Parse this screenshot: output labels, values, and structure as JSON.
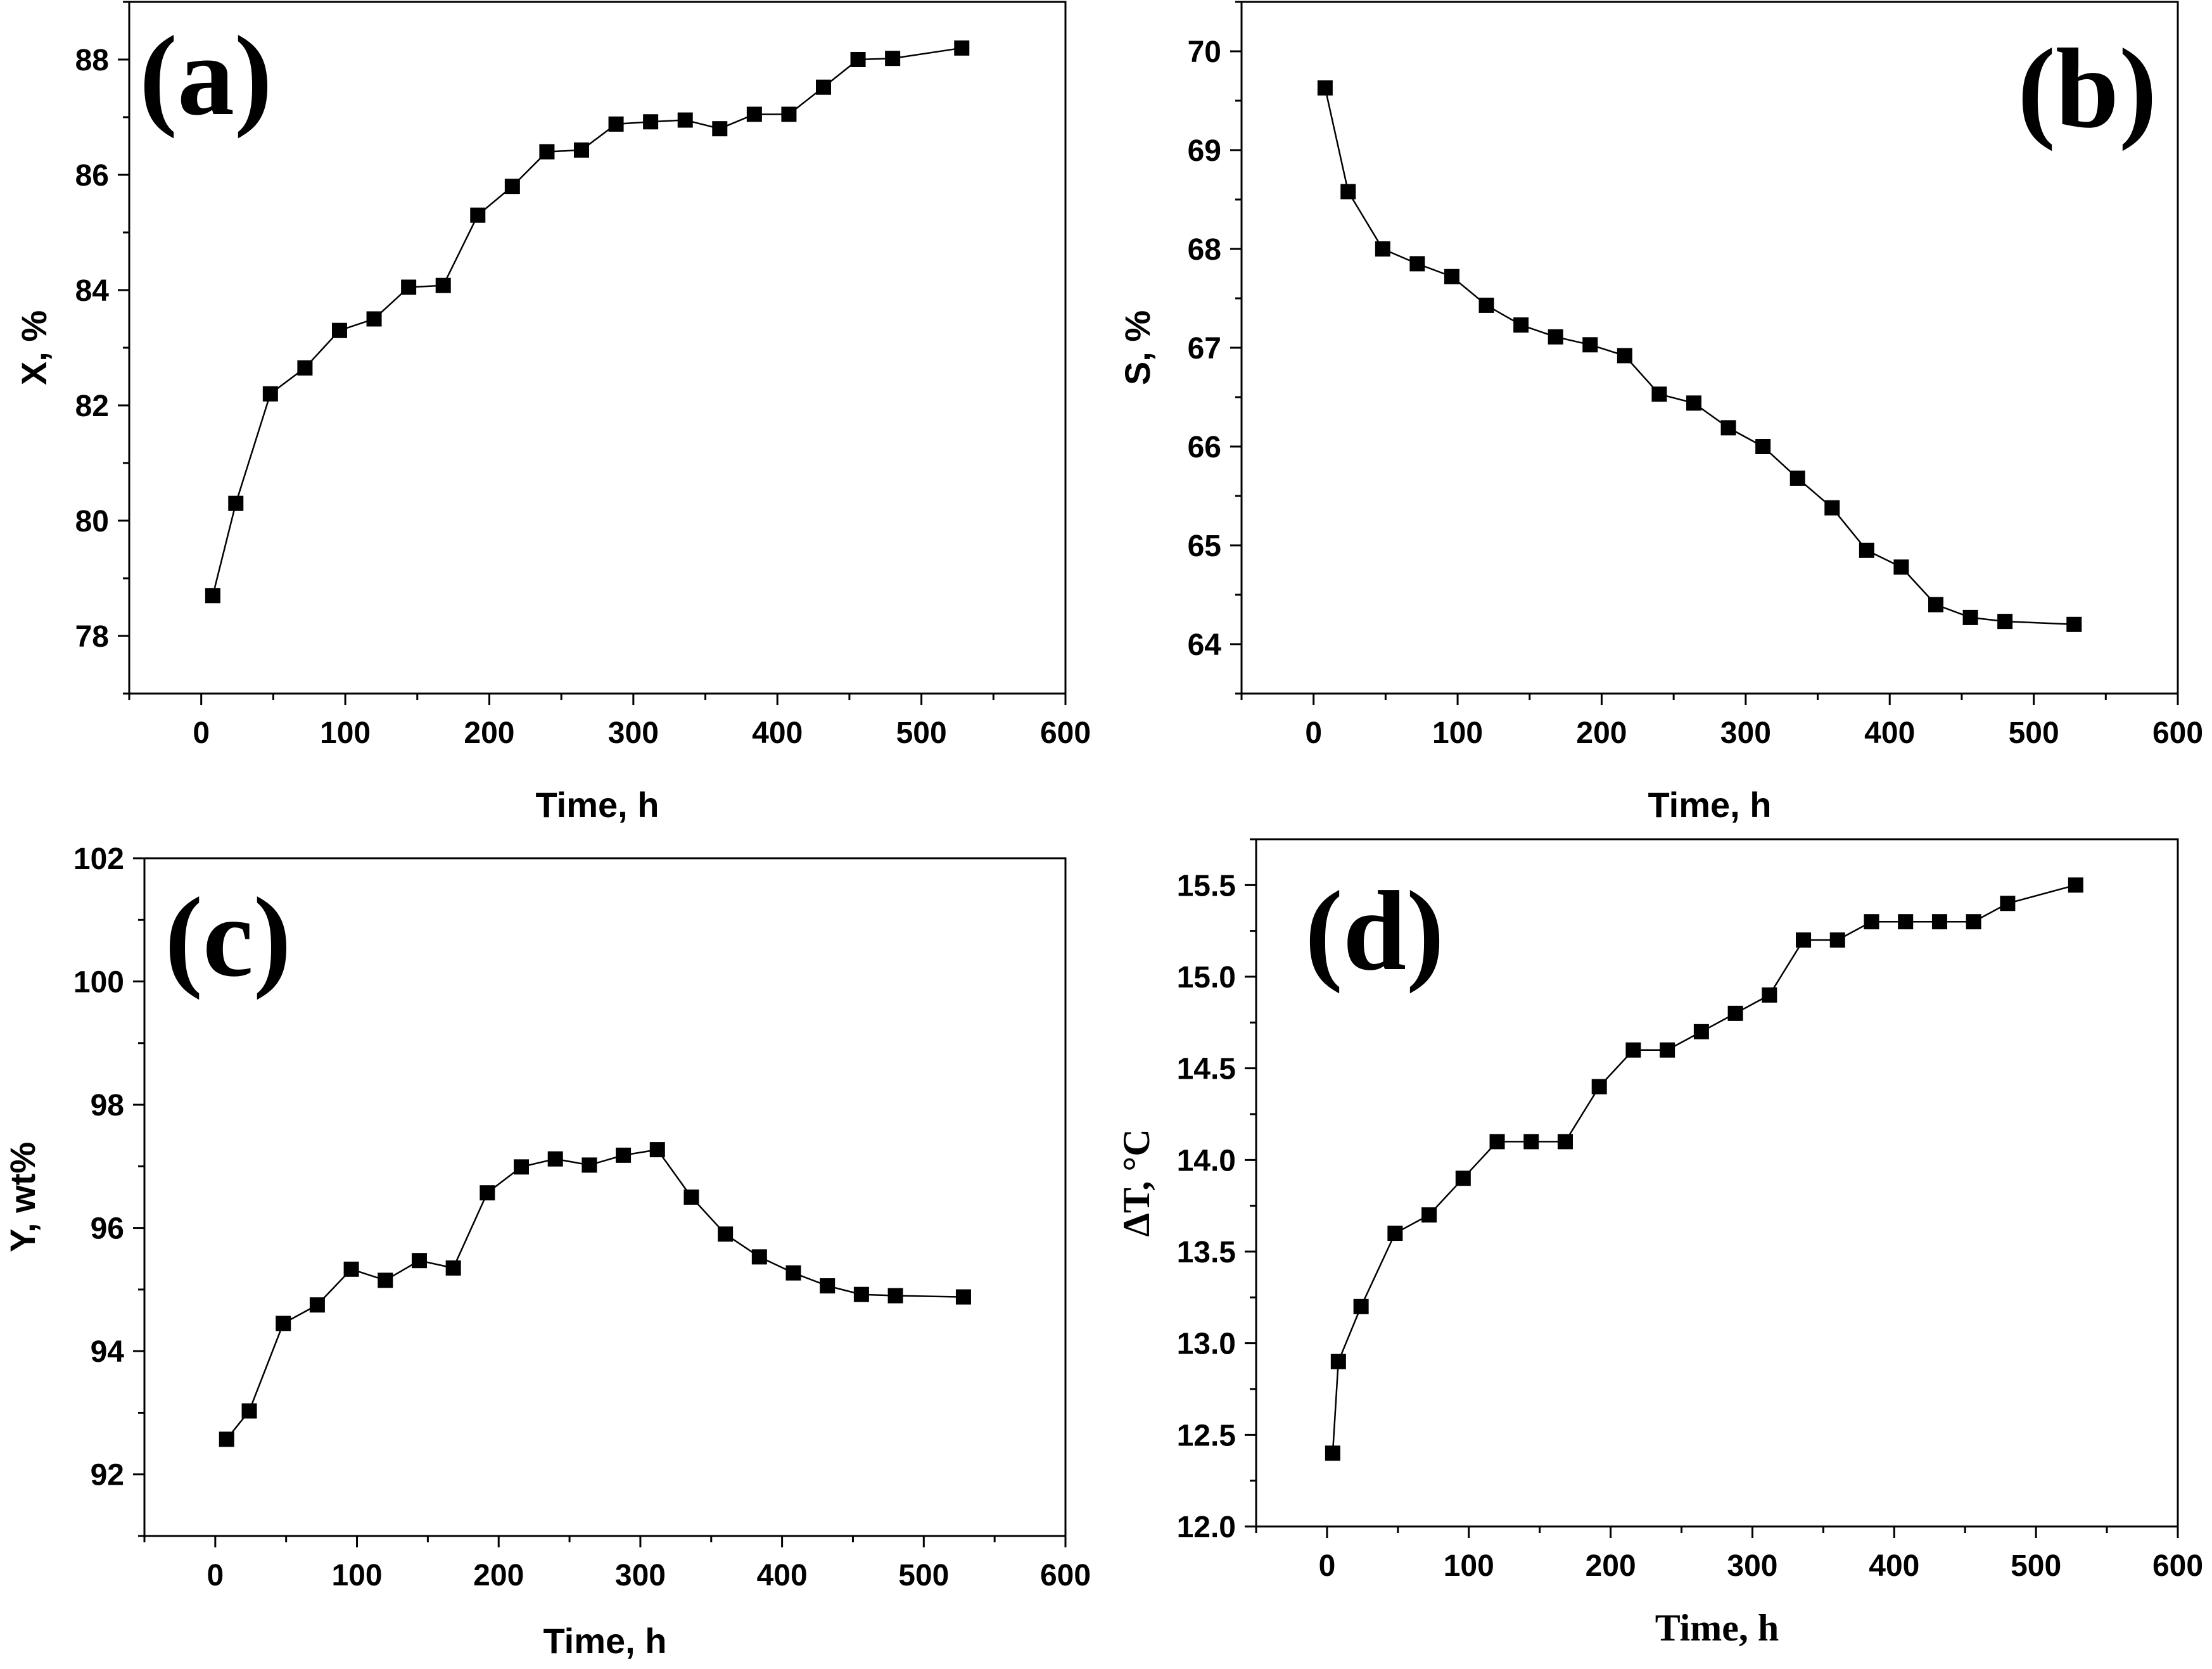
{
  "chart_data": [
    {
      "type": "line",
      "panel": "(a)",
      "panel_position": "top-left",
      "xlabel": "Time, h",
      "ylabel": "X, %",
      "xlim": [
        -50,
        600
      ],
      "ylim": [
        77,
        89
      ],
      "xticks": [
        "0",
        "100",
        "200",
        "300",
        "400",
        "500",
        "600"
      ],
      "yticks": [
        "78",
        "80",
        "82",
        "84",
        "86",
        "88"
      ],
      "series": [
        {
          "name": "X",
          "marker": "square",
          "x": [
            8,
            24,
            48,
            72,
            96,
            120,
            144,
            168,
            192,
            216,
            240,
            264,
            288,
            312,
            336,
            360,
            384,
            408,
            432,
            456,
            480,
            528
          ],
          "y": [
            78.7,
            80.3,
            82.2,
            82.65,
            83.3,
            83.5,
            84.05,
            84.08,
            85.3,
            85.8,
            86.4,
            86.43,
            86.88,
            86.92,
            86.95,
            86.8,
            87.05,
            87.05,
            87.52,
            88.0,
            88.02,
            88.2
          ]
        }
      ]
    },
    {
      "type": "line",
      "panel": "(b)",
      "panel_position": "top-right",
      "xlabel": "Time, h",
      "ylabel": "S, %",
      "xlim": [
        -50,
        600
      ],
      "ylim": [
        63.5,
        70.5
      ],
      "xticks": [
        "0",
        "100",
        "200",
        "300",
        "400",
        "500",
        "600"
      ],
      "yticks": [
        "64",
        "65",
        "66",
        "67",
        "68",
        "69",
        "70"
      ],
      "series": [
        {
          "name": "S",
          "marker": "square",
          "x": [
            8,
            24,
            48,
            72,
            96,
            120,
            144,
            168,
            192,
            216,
            240,
            264,
            288,
            312,
            336,
            360,
            384,
            408,
            432,
            456,
            480,
            528
          ],
          "y": [
            69.63,
            68.58,
            68.0,
            67.85,
            67.72,
            67.43,
            67.23,
            67.11,
            67.03,
            66.92,
            66.53,
            66.44,
            66.19,
            66.0,
            65.68,
            65.38,
            64.95,
            64.78,
            64.4,
            64.27,
            64.23,
            64.2
          ]
        }
      ]
    },
    {
      "type": "line",
      "panel": "(c)",
      "panel_position": "bottom-left",
      "xlabel": "Time, h",
      "ylabel": "Y, wt%",
      "xlim": [
        -50,
        600
      ],
      "ylim": [
        91,
        102
      ],
      "xticks": [
        "0",
        "100",
        "200",
        "300",
        "400",
        "500",
        "600"
      ],
      "yticks": [
        "92",
        "94",
        "96",
        "98",
        "100",
        "102"
      ],
      "series": [
        {
          "name": "Y",
          "marker": "square",
          "x": [
            8,
            24,
            48,
            72,
            96,
            120,
            144,
            168,
            192,
            216,
            240,
            264,
            288,
            312,
            336,
            360,
            384,
            408,
            432,
            456,
            480,
            528
          ],
          "y": [
            92.57,
            93.03,
            94.45,
            94.75,
            95.33,
            95.15,
            95.47,
            95.35,
            96.57,
            96.99,
            97.12,
            97.02,
            97.18,
            97.27,
            96.5,
            95.9,
            95.53,
            95.27,
            95.06,
            94.92,
            94.9,
            94.88
          ]
        }
      ]
    },
    {
      "type": "line",
      "panel": "(d)",
      "panel_position": "bottom-right",
      "xlabel": "Time, h",
      "ylabel": "ΔT, °C",
      "xlim": [
        -50,
        600
      ],
      "ylim": [
        12.0,
        15.75
      ],
      "xticks": [
        "0",
        "100",
        "200",
        "300",
        "400",
        "500",
        "600"
      ],
      "yticks": [
        "12.0",
        "12.5",
        "13.0",
        "13.5",
        "14.0",
        "14.5",
        "15.0",
        "15.5"
      ],
      "series": [
        {
          "name": "ΔT",
          "marker": "square",
          "x": [
            4,
            8,
            24,
            48,
            72,
            96,
            120,
            144,
            168,
            192,
            216,
            240,
            264,
            288,
            312,
            336,
            360,
            384,
            408,
            432,
            456,
            480,
            528
          ],
          "y": [
            12.4,
            12.9,
            13.2,
            13.6,
            13.7,
            13.9,
            14.1,
            14.1,
            14.1,
            14.4,
            14.6,
            14.6,
            14.7,
            14.8,
            14.9,
            15.2,
            15.2,
            15.3,
            15.3,
            15.3,
            15.3,
            15.4,
            15.5
          ]
        }
      ]
    }
  ]
}
